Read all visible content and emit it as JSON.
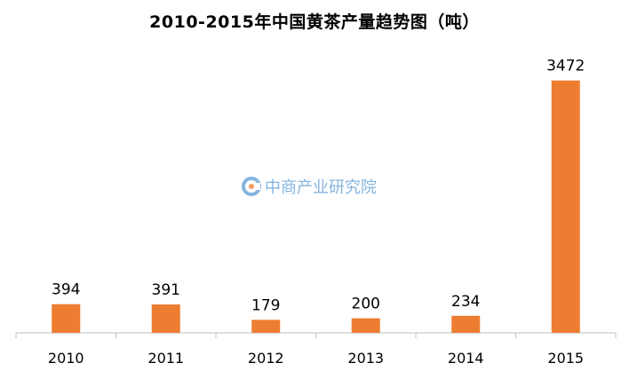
{
  "chart_data": {
    "type": "bar",
    "title": "2010-2015年中国黄茶产量趋势图（吨）",
    "xlabel": "",
    "ylabel": "",
    "categories": [
      "2010",
      "2011",
      "2012",
      "2013",
      "2014",
      "2015"
    ],
    "values": [
      394,
      391,
      179,
      200,
      234,
      3472
    ],
    "data_labels": [
      "394",
      "391",
      "179",
      "200",
      "234",
      "3472"
    ],
    "ylim": [
      0,
      3700
    ],
    "grid": false,
    "legend": "none",
    "bar_color": "#ed7d31",
    "axis_color": "#bfbfbf"
  },
  "watermark": {
    "text": "中商产业研究院",
    "icon": "company-logo-icon",
    "color": "#5b9bd5"
  }
}
